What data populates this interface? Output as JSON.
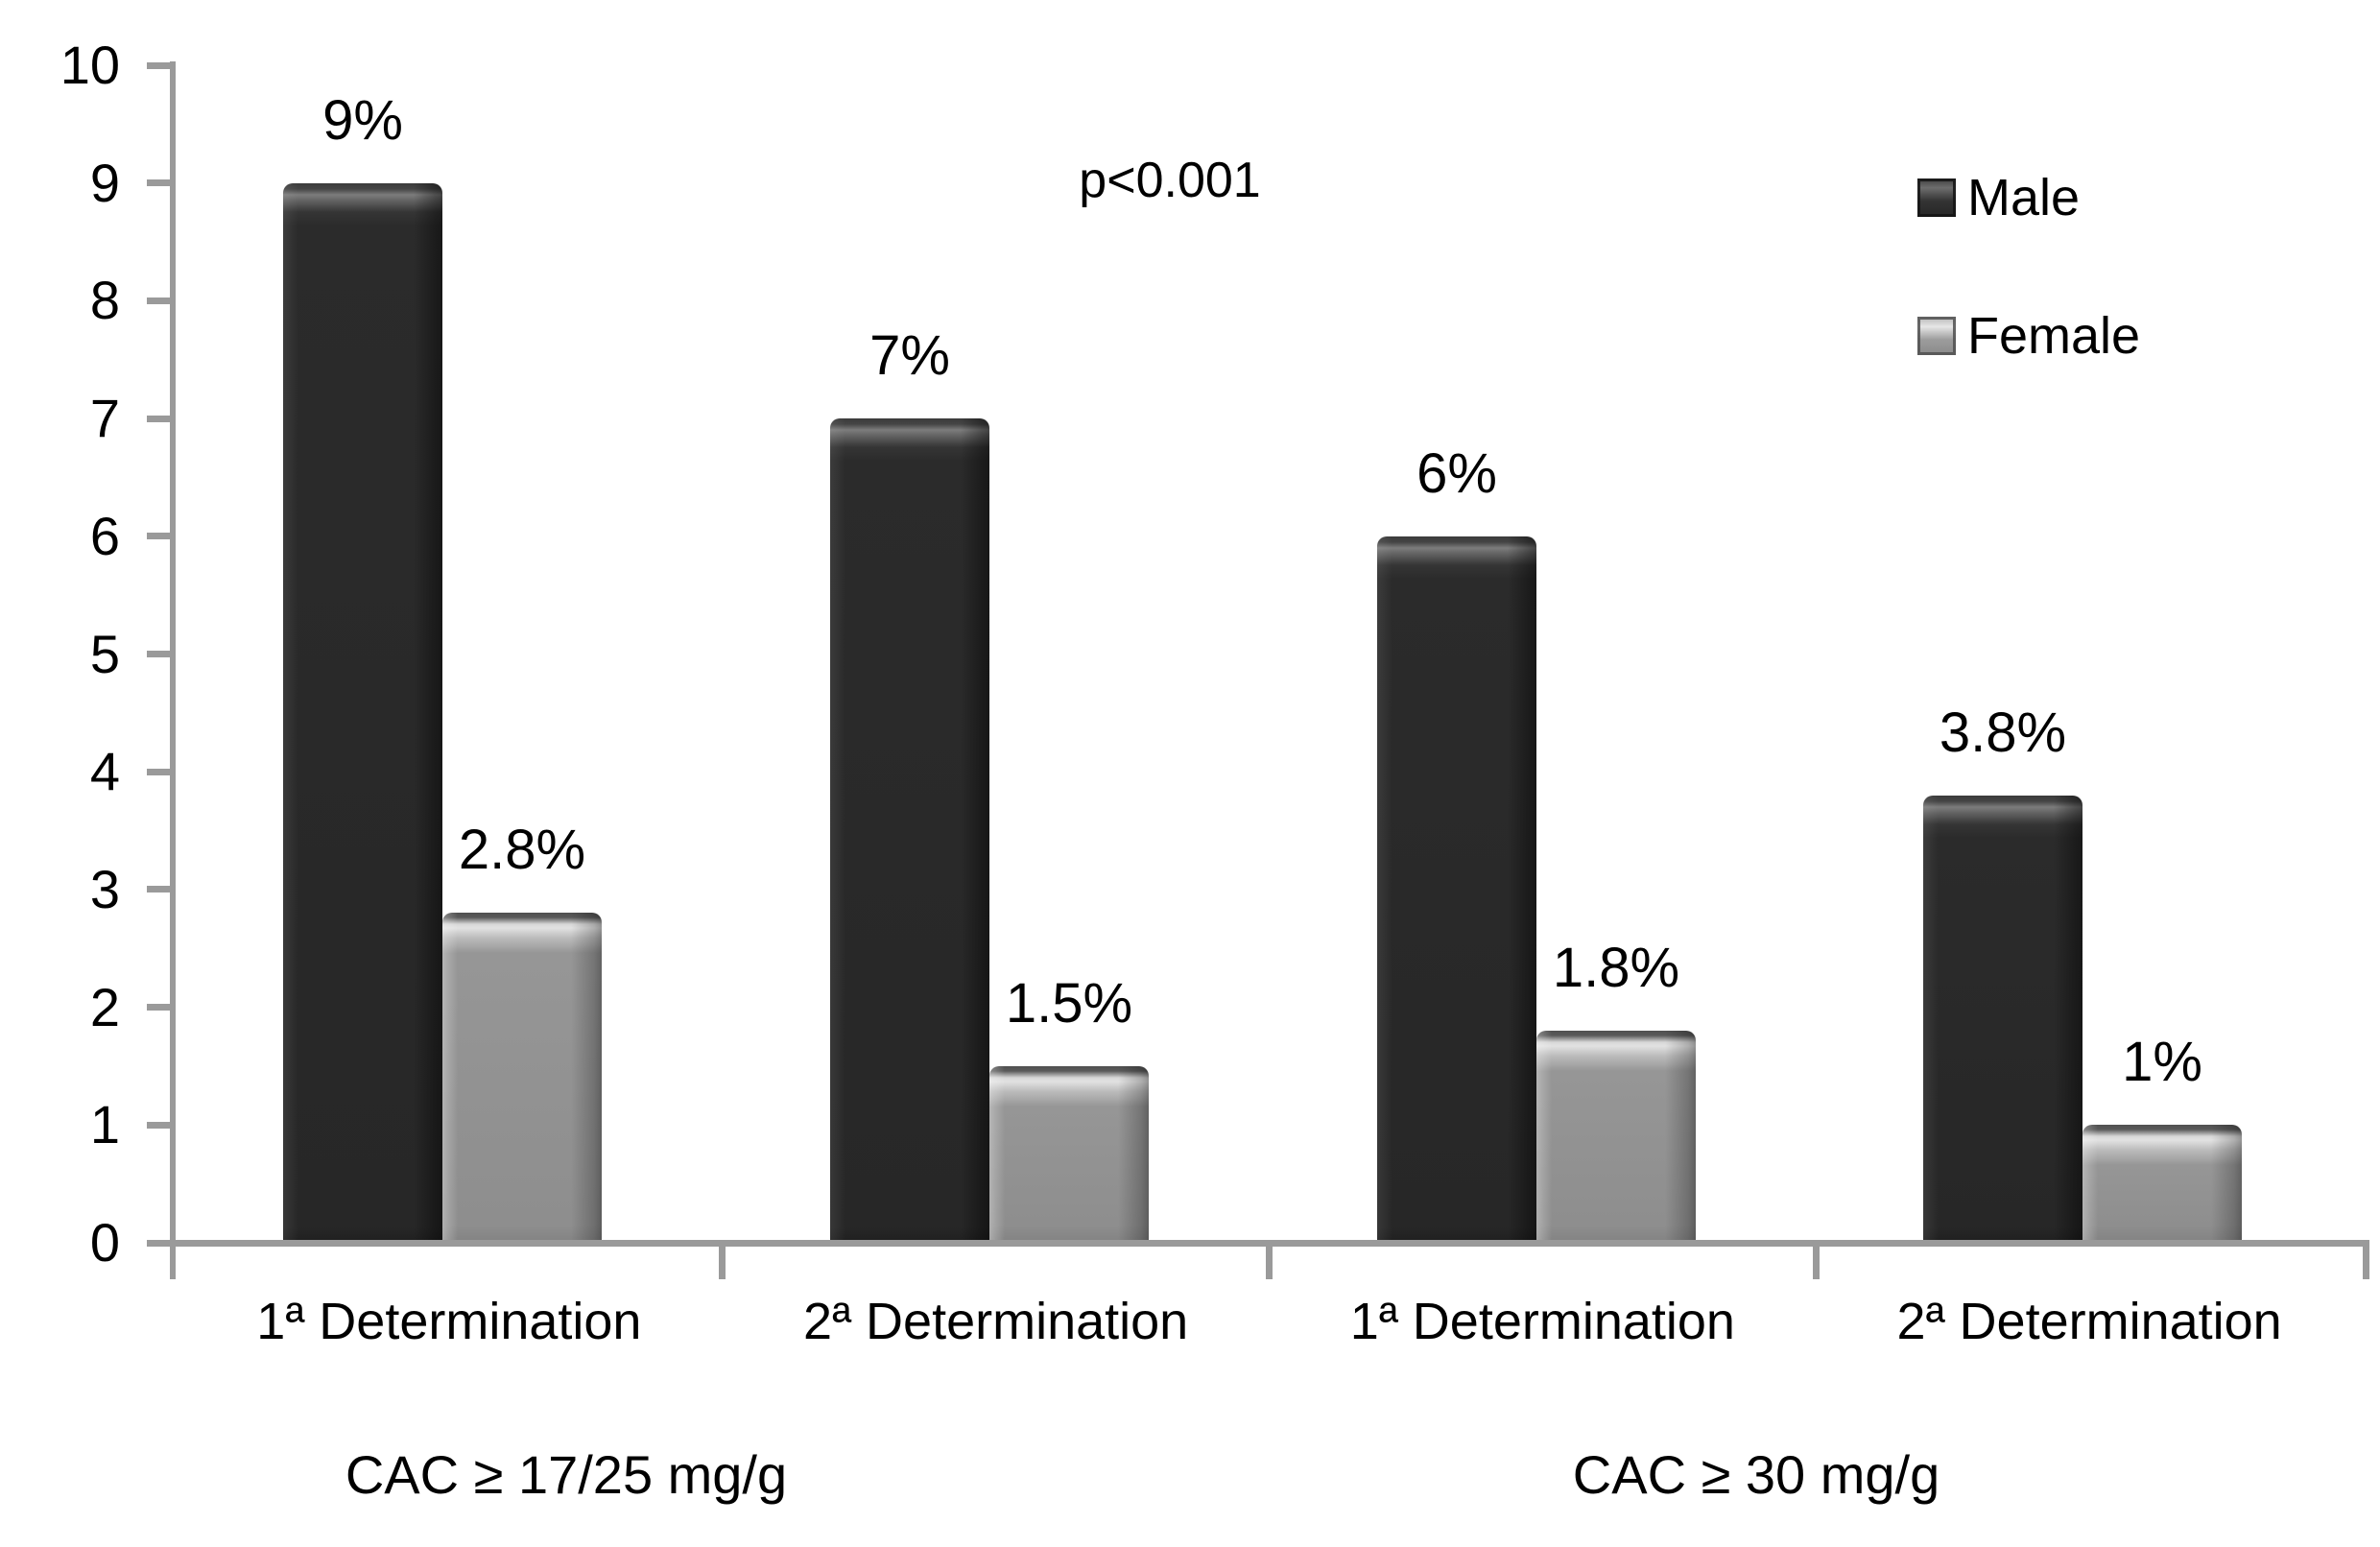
{
  "chart_data": {
    "type": "bar",
    "title": "",
    "y_axis": {
      "min": 0,
      "max": 10,
      "ticks": [
        "0",
        "1",
        "2",
        "3",
        "4",
        "5",
        "6",
        "7",
        "8",
        "9",
        "10"
      ],
      "grid": false
    },
    "categories": [
      "1ª Determination",
      "2ª Determination",
      "1ª Determination",
      "2ª Determination"
    ],
    "category_groups": [
      {
        "label": "CAC ≥ 17/25 mg/g",
        "categories": [
          0,
          1
        ]
      },
      {
        "label": "CAC ≥ 30 mg/g",
        "categories": [
          2,
          3
        ]
      }
    ],
    "series": [
      {
        "name": "Male",
        "values": [
          9,
          7,
          6,
          3.8
        ],
        "value_labels": [
          "9%",
          "7%",
          "6%",
          "3.8%"
        ],
        "color": "#282828"
      },
      {
        "name": "Female",
        "values": [
          2.8,
          1.5,
          1.8,
          1
        ],
        "value_labels": [
          "2.8%",
          "1.5%",
          "1.8%",
          "1%"
        ],
        "color": "#8f8f8f"
      }
    ],
    "annotation": "p<0.001",
    "legend": {
      "position": "top-right",
      "entries": [
        "Male",
        "Female"
      ]
    }
  },
  "colors": {
    "male_bar": "#282828",
    "female_bar": "#8f8f8f",
    "axis": "#9a9a9a",
    "text": "#000000",
    "background": "#ffffff"
  }
}
